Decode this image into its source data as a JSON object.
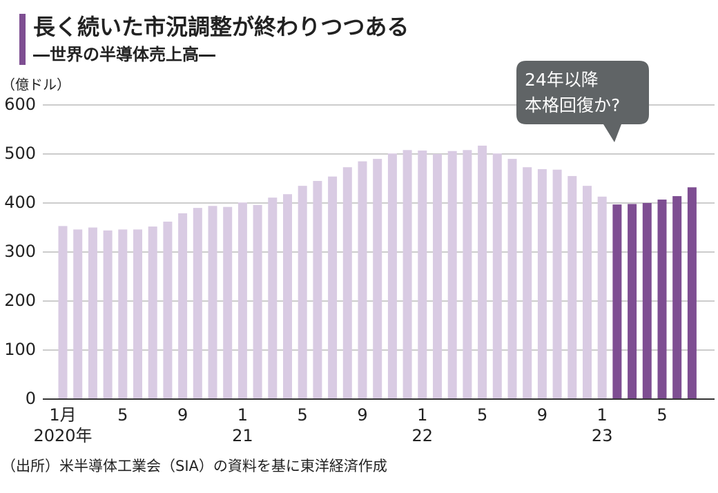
{
  "chart_data": {
    "type": "bar",
    "title": "長く続いた市況調整が終わりつつある",
    "subtitle": "―世界の半導体売上高―",
    "y_unit": "（億ドル）",
    "source": "（出所）米半導体工業会（SIA）の資料を基に東洋経済作成",
    "annotation": [
      "24年以降",
      "本格回復か?"
    ],
    "categories": [
      "1月",
      null,
      null,
      null,
      "5",
      null,
      null,
      null,
      "9",
      null,
      null,
      null,
      "1",
      null,
      null,
      null,
      "5",
      null,
      null,
      null,
      "9",
      null,
      null,
      null,
      "1",
      null,
      null,
      null,
      "5",
      null,
      null,
      null,
      "9",
      null,
      null,
      null,
      "1",
      null,
      null,
      null,
      "5",
      null,
      null
    ],
    "years": [
      "2020年",
      null,
      null,
      null,
      null,
      null,
      null,
      null,
      null,
      null,
      null,
      null,
      "21",
      null,
      null,
      null,
      null,
      null,
      null,
      null,
      null,
      null,
      null,
      null,
      "22",
      null,
      null,
      null,
      null,
      null,
      null,
      null,
      null,
      null,
      null,
      null,
      "23",
      null,
      null,
      null,
      null,
      null,
      null
    ],
    "values": [
      353,
      346,
      350,
      344,
      346,
      346,
      352,
      362,
      379,
      390,
      394,
      392,
      401,
      396,
      411,
      418,
      435,
      445,
      454,
      473,
      485,
      490,
      501,
      508,
      507,
      500,
      506,
      508,
      517,
      501,
      490,
      473,
      469,
      468,
      455,
      435,
      413,
      397,
      398,
      400,
      407,
      414,
      432
    ],
    "colors": [
      "#d9cbe3",
      "#d9cbe3",
      "#d9cbe3",
      "#d9cbe3",
      "#d9cbe3",
      "#d9cbe3",
      "#d9cbe3",
      "#d9cbe3",
      "#d9cbe3",
      "#d9cbe3",
      "#d9cbe3",
      "#d9cbe3",
      "#d9cbe3",
      "#d9cbe3",
      "#d9cbe3",
      "#d9cbe3",
      "#d9cbe3",
      "#d9cbe3",
      "#d9cbe3",
      "#d9cbe3",
      "#d9cbe3",
      "#d9cbe3",
      "#d9cbe3",
      "#d9cbe3",
      "#d9cbe3",
      "#d9cbe3",
      "#d9cbe3",
      "#d9cbe3",
      "#d9cbe3",
      "#d9cbe3",
      "#d9cbe3",
      "#d9cbe3",
      "#d9cbe3",
      "#d9cbe3",
      "#d9cbe3",
      "#d9cbe3",
      "#d9cbe3",
      "#7e4e92",
      "#7e4e92",
      "#7e4e92",
      "#7e4e92",
      "#7e4e92",
      "#7e4e92"
    ],
    "ylim": [
      0,
      600
    ],
    "yticks": [
      0,
      100,
      200,
      300,
      400,
      500,
      600
    ],
    "grid": true
  }
}
